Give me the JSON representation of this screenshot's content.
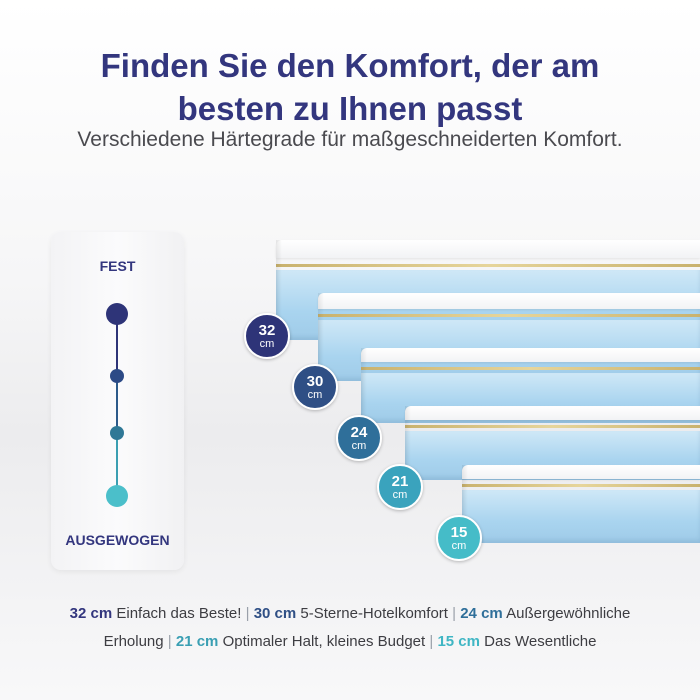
{
  "header": {
    "title_line1": "Finden Sie den Komfort, der am",
    "title_line2": "besten zu Ihnen passt",
    "subtitle": "Verschiedene Härtegrade für maßgeschneiderten Komfort."
  },
  "scale": {
    "top_label": "FEST",
    "bottom_label": "AUSGEWOGEN",
    "dot_colors": [
      "#2e3478",
      "#2c4a86",
      "#2f7896",
      "#4bbfca"
    ]
  },
  "mattresses": [
    {
      "size": "32",
      "unit": "cm",
      "color": "#2e3478"
    },
    {
      "size": "30",
      "unit": "cm",
      "color": "#2f4f85"
    },
    {
      "size": "24",
      "unit": "cm",
      "color": "#2f6f9a"
    },
    {
      "size": "21",
      "unit": "cm",
      "color": "#3aa3bd"
    },
    {
      "size": "15",
      "unit": "cm",
      "color": "#45bcc8"
    }
  ],
  "description": {
    "items": [
      {
        "key": "32 cm",
        "text": "Einfach das Beste!"
      },
      {
        "key": "30 cm",
        "text": "5-Sterne-Hotelkomfort"
      },
      {
        "key": "24 cm",
        "text": "Außergewöhnliche Erholung"
      },
      {
        "key": "21 cm",
        "text": "Optimaler Halt, kleines Budget"
      },
      {
        "key": "15 cm",
        "text": "Das Wesentliche"
      }
    ],
    "line1_tail": "Außergewöhnliche",
    "line2_head": "Erholung"
  }
}
